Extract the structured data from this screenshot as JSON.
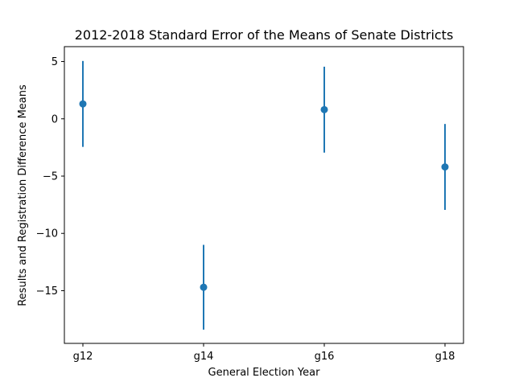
{
  "chart_data": {
    "type": "scatter",
    "title": "2012-2018 Standard Error of the Means of Senate Districts",
    "xlabel": "General Election Year",
    "ylabel": "Results and Registration Difference Means",
    "categories": [
      "g12",
      "g14",
      "g16",
      "g18"
    ],
    "series": [
      {
        "values": [
          1.3,
          -14.7,
          0.8,
          -4.2
        ],
        "errors": [
          3.75,
          3.7,
          3.75,
          3.75
        ],
        "color": "#1f77b4"
      }
    ],
    "ylim": [
      -19.6,
      6.3
    ],
    "yticks": [
      5,
      0,
      -5,
      -10,
      -15
    ],
    "ytick_labels": [
      "5",
      "0",
      "−5",
      "−10",
      "−15"
    ],
    "grid": false,
    "legend": false
  }
}
